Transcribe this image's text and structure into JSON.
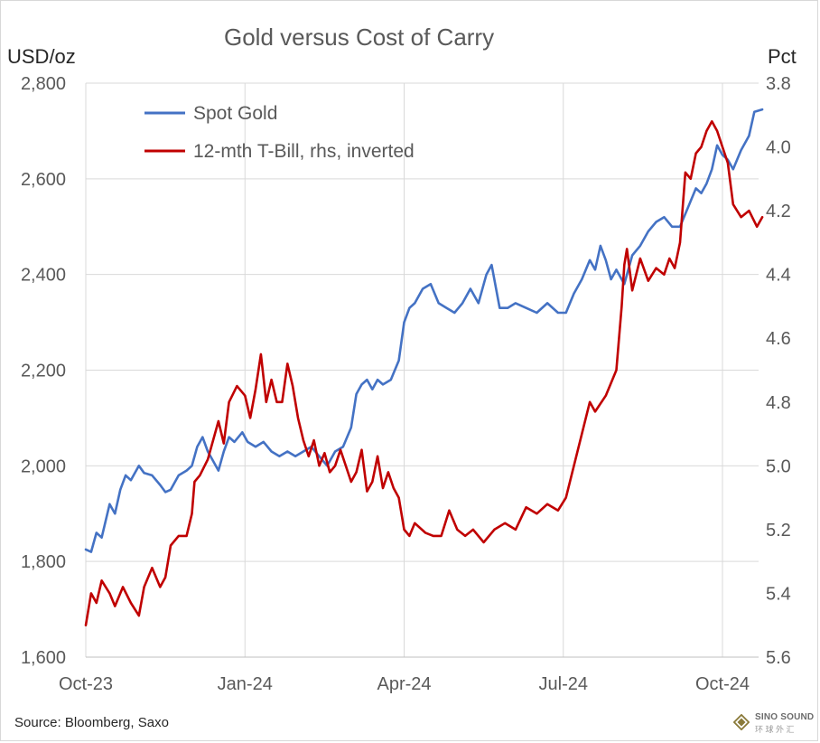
{
  "chart_data": {
    "type": "line",
    "title": "Gold versus Cost of Carry",
    "y_left_label": "USD/oz",
    "y_right_label": "Pct",
    "y_left_lim": [
      1600,
      2800
    ],
    "y_left_ticks": [
      "1,600",
      "1,800",
      "2,000",
      "2,200",
      "2,400",
      "2,600",
      "2,800"
    ],
    "y_left_tick_values": [
      1600,
      1800,
      2000,
      2200,
      2400,
      2600,
      2800
    ],
    "y_right_lim": [
      5.6,
      3.8
    ],
    "y_right_inverted": true,
    "y_right_ticks": [
      "3.8",
      "4.0",
      "4.2",
      "4.4",
      "4.6",
      "4.8",
      "5.0",
      "5.2",
      "5.4",
      "5.6"
    ],
    "y_right_tick_values": [
      3.8,
      4.0,
      4.2,
      4.4,
      4.6,
      4.8,
      5.0,
      5.2,
      5.4,
      5.6
    ],
    "x_ticks": [
      "Oct-23",
      "Jan-24",
      "Apr-24",
      "Jul-24",
      "Oct-24"
    ],
    "x_tick_months": [
      0,
      3,
      6,
      9,
      12
    ],
    "x_range_months": [
      0,
      12.75
    ],
    "grid": true,
    "legend_position": "top-left",
    "series": [
      {
        "name": "Spot Gold",
        "axis": "left",
        "color": "#4472c4",
        "x": [
          0,
          0.1,
          0.2,
          0.3,
          0.45,
          0.55,
          0.65,
          0.75,
          0.85,
          1.0,
          1.1,
          1.25,
          1.4,
          1.5,
          1.6,
          1.75,
          1.9,
          2.0,
          2.1,
          2.2,
          2.3,
          2.4,
          2.5,
          2.6,
          2.7,
          2.8,
          2.95,
          3.05,
          3.2,
          3.35,
          3.5,
          3.65,
          3.8,
          3.95,
          4.1,
          4.25,
          4.4,
          4.55,
          4.7,
          4.85,
          5.0,
          5.1,
          5.2,
          5.3,
          5.4,
          5.5,
          5.6,
          5.75,
          5.9,
          6.0,
          6.1,
          6.2,
          6.35,
          6.5,
          6.65,
          6.8,
          6.95,
          7.1,
          7.25,
          7.4,
          7.55,
          7.65,
          7.8,
          7.95,
          8.1,
          8.3,
          8.5,
          8.7,
          8.9,
          9.05,
          9.2,
          9.35,
          9.5,
          9.6,
          9.7,
          9.8,
          9.9,
          10.0,
          10.15,
          10.3,
          10.45,
          10.6,
          10.75,
          10.9,
          11.05,
          11.2,
          11.35,
          11.5,
          11.6,
          11.7,
          11.8,
          11.9,
          12.0,
          12.1,
          12.2,
          12.35,
          12.5,
          12.6,
          12.75
        ],
        "values": [
          1825,
          1820,
          1860,
          1850,
          1920,
          1900,
          1950,
          1980,
          1970,
          2000,
          1985,
          1980,
          1960,
          1945,
          1950,
          1980,
          1990,
          2000,
          2040,
          2060,
          2030,
          2010,
          1990,
          2030,
          2060,
          2050,
          2070,
          2050,
          2040,
          2050,
          2030,
          2020,
          2030,
          2020,
          2030,
          2040,
          2020,
          2000,
          2030,
          2040,
          2080,
          2150,
          2170,
          2180,
          2160,
          2180,
          2170,
          2180,
          2220,
          2300,
          2330,
          2340,
          2370,
          2380,
          2340,
          2330,
          2320,
          2340,
          2370,
          2340,
          2400,
          2420,
          2330,
          2330,
          2340,
          2330,
          2320,
          2340,
          2320,
          2320,
          2360,
          2390,
          2430,
          2410,
          2460,
          2430,
          2390,
          2410,
          2380,
          2440,
          2460,
          2490,
          2510,
          2520,
          2500,
          2500,
          2540,
          2580,
          2570,
          2590,
          2620,
          2670,
          2650,
          2640,
          2620,
          2660,
          2690,
          2740,
          2745
        ]
      },
      {
        "name": "12-mth T-Bill, rhs, inverted",
        "axis": "right",
        "color": "#c00000",
        "x": [
          0,
          0.1,
          0.2,
          0.3,
          0.45,
          0.55,
          0.7,
          0.85,
          1.0,
          1.1,
          1.25,
          1.4,
          1.5,
          1.6,
          1.75,
          1.9,
          2.0,
          2.05,
          2.15,
          2.3,
          2.5,
          2.6,
          2.7,
          2.85,
          3.0,
          3.1,
          3.2,
          3.3,
          3.4,
          3.5,
          3.6,
          3.7,
          3.8,
          3.9,
          4.0,
          4.1,
          4.2,
          4.3,
          4.4,
          4.5,
          4.6,
          4.7,
          4.8,
          4.9,
          5.0,
          5.1,
          5.2,
          5.3,
          5.4,
          5.5,
          5.6,
          5.7,
          5.8,
          5.9,
          6.0,
          6.1,
          6.2,
          6.4,
          6.55,
          6.7,
          6.85,
          7.0,
          7.15,
          7.3,
          7.5,
          7.7,
          7.9,
          8.1,
          8.3,
          8.5,
          8.7,
          8.9,
          9.05,
          9.2,
          9.35,
          9.5,
          9.6,
          9.8,
          10.0,
          10.1,
          10.15,
          10.2,
          10.3,
          10.45,
          10.6,
          10.75,
          10.9,
          11.0,
          11.1,
          11.2,
          11.3,
          11.4,
          11.5,
          11.6,
          11.7,
          11.8,
          11.9,
          12.0,
          12.1,
          12.2,
          12.35,
          12.5,
          12.65,
          12.75
        ],
        "values": [
          5.5,
          5.4,
          5.43,
          5.36,
          5.4,
          5.44,
          5.38,
          5.43,
          5.47,
          5.38,
          5.32,
          5.38,
          5.35,
          5.25,
          5.22,
          5.22,
          5.15,
          5.05,
          5.03,
          4.98,
          4.86,
          4.93,
          4.8,
          4.75,
          4.78,
          4.85,
          4.76,
          4.65,
          4.8,
          4.73,
          4.8,
          4.8,
          4.68,
          4.75,
          4.85,
          4.92,
          4.97,
          4.92,
          5.0,
          4.96,
          5.02,
          5.0,
          4.95,
          5.0,
          5.05,
          5.02,
          4.95,
          5.08,
          5.05,
          4.97,
          5.07,
          5.02,
          5.07,
          5.1,
          5.2,
          5.22,
          5.18,
          5.21,
          5.22,
          5.22,
          5.14,
          5.2,
          5.22,
          5.2,
          5.24,
          5.2,
          5.18,
          5.2,
          5.13,
          5.15,
          5.12,
          5.14,
          5.1,
          5.0,
          4.9,
          4.8,
          4.83,
          4.78,
          4.7,
          4.5,
          4.37,
          4.32,
          4.45,
          4.35,
          4.42,
          4.38,
          4.4,
          4.35,
          4.38,
          4.3,
          4.08,
          4.1,
          4.02,
          4.0,
          3.95,
          3.92,
          3.95,
          4.0,
          4.05,
          4.18,
          4.22,
          4.2,
          4.25,
          4.22
        ]
      }
    ]
  },
  "source_note": "Source: Bloomberg,  Saxo",
  "watermark": {
    "name": "SINO SOUND",
    "subtitle": "环 球 外 汇"
  }
}
